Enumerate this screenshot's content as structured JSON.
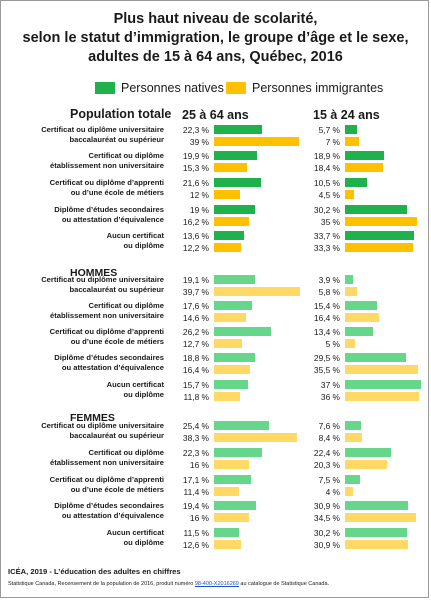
{
  "title_lines": [
    "Plus haut niveau de scolarité,",
    "selon le statut d’immigration, le groupe d’âge et le sexe,",
    "adultes de 15 à 64 ans, Québec, 2016"
  ],
  "colors": {
    "natives_dark": "#1fb14b",
    "immigrants_dark": "#ffc000",
    "natives_light": "#66d68a",
    "immigrants_light": "#ffd966"
  },
  "chart_data": {
    "type": "bar",
    "orientation": "horizontal",
    "title": "Plus haut niveau de scolarité, selon le statut d’immigration, le groupe d’âge et le sexe, adultes de 15 à 64 ans, Québec, 2016",
    "legend": [
      "Personnes natives",
      "Personnes immigrantes"
    ],
    "legend_position": "top",
    "columns": [
      "25 à 64 ans",
      "15 à 24 ans"
    ],
    "unit": "%",
    "grid": false,
    "sections": [
      {
        "name": "Population totale",
        "rows": [
          {
            "category": [
              "Certificat ou diplôme universitaire",
              "baccalauréat ou supérieur"
            ],
            "values": [
              {
                "natives": 22.3,
                "natives_label": "22,3 %",
                "immigrants": 39,
                "immigrants_label": "39 %"
              },
              {
                "natives": 5.7,
                "natives_label": "5,7 %",
                "immigrants": 7,
                "immigrants_label": "7 %"
              }
            ]
          },
          {
            "category": [
              "Certificat ou diplôme",
              "établissement non universitaire"
            ],
            "values": [
              {
                "natives": 19.9,
                "natives_label": "19,9 %",
                "immigrants": 15.3,
                "immigrants_label": "15,3 %"
              },
              {
                "natives": 18.9,
                "natives_label": "18,9 %",
                "immigrants": 18.4,
                "immigrants_label": "18,4 %"
              }
            ]
          },
          {
            "category": [
              "Certificat ou diplôme d’apprenti",
              "ou d’une école de métiers"
            ],
            "values": [
              {
                "natives": 21.6,
                "natives_label": "21,6 %",
                "immigrants": 12,
                "immigrants_label": "12 %"
              },
              {
                "natives": 10.5,
                "natives_label": "10,5 %",
                "immigrants": 4.5,
                "immigrants_label": "4,5 %"
              }
            ]
          },
          {
            "category": [
              "Diplôme d’études secondaires",
              "ou attestation d’équivalence"
            ],
            "values": [
              {
                "natives": 19,
                "natives_label": "19 %",
                "immigrants": 16.2,
                "immigrants_label": "16,2 %"
              },
              {
                "natives": 30.2,
                "natives_label": "30,2 %",
                "immigrants": 35,
                "immigrants_label": "35 %"
              }
            ]
          },
          {
            "category": [
              "Aucun certificat",
              "ou diplôme"
            ],
            "values": [
              {
                "natives": 13.6,
                "natives_label": "13,6 %",
                "immigrants": 12.2,
                "immigrants_label": "12,2 %"
              },
              {
                "natives": 33.7,
                "natives_label": "33,7 %",
                "immigrants": 33.3,
                "immigrants_label": "33,3 %"
              }
            ]
          }
        ]
      },
      {
        "name": "HOMMES",
        "rows": [
          {
            "category": [
              "Certificat ou diplôme universitaire",
              "baccalauréat ou supérieur"
            ],
            "values": [
              {
                "natives": 19.1,
                "natives_label": "19,1 %",
                "immigrants": 39.7,
                "immigrants_label": "39,7 %"
              },
              {
                "natives": 3.9,
                "natives_label": "3,9 %",
                "immigrants": 5.8,
                "immigrants_label": "5,8 %"
              }
            ]
          },
          {
            "category": [
              "Certificat ou diplôme",
              "établissement non universitaire"
            ],
            "values": [
              {
                "natives": 17.6,
                "natives_label": "17,6 %",
                "immigrants": 14.6,
                "immigrants_label": "14,6 %"
              },
              {
                "natives": 15.4,
                "natives_label": "15,4 %",
                "immigrants": 16.4,
                "immigrants_label": "16,4 %"
              }
            ]
          },
          {
            "category": [
              "Certificat ou diplôme d’apprenti",
              "ou d’une école de métiers"
            ],
            "values": [
              {
                "natives": 26.2,
                "natives_label": "26,2 %",
                "immigrants": 12.7,
                "immigrants_label": "12,7 %"
              },
              {
                "natives": 13.4,
                "natives_label": "13,4 %",
                "immigrants": 5,
                "immigrants_label": "5 %"
              }
            ]
          },
          {
            "category": [
              "Diplôme d’études secondaires",
              "ou attestation d’équivalence"
            ],
            "values": [
              {
                "natives": 18.8,
                "natives_label": "18,8 %",
                "immigrants": 16.4,
                "immigrants_label": "16,4 %"
              },
              {
                "natives": 29.5,
                "natives_label": "29,5 %",
                "immigrants": 35.5,
                "immigrants_label": "35,5 %"
              }
            ]
          },
          {
            "category": [
              "Aucun certificat",
              "ou diplôme"
            ],
            "values": [
              {
                "natives": 15.7,
                "natives_label": "15,7 %",
                "immigrants": 11.8,
                "immigrants_label": "11,8 %"
              },
              {
                "natives": 37,
                "natives_label": "37 %",
                "immigrants": 36,
                "immigrants_label": "36 %"
              }
            ]
          }
        ]
      },
      {
        "name": "FEMMES",
        "rows": [
          {
            "category": [
              "Certificat ou diplôme universitaire",
              "baccalauréat ou supérieur"
            ],
            "values": [
              {
                "natives": 25.4,
                "natives_label": "25,4 %",
                "immigrants": 38.3,
                "immigrants_label": "38,3 %"
              },
              {
                "natives": 7.6,
                "natives_label": "7,6 %",
                "immigrants": 8.4,
                "immigrants_label": "8,4 %"
              }
            ]
          },
          {
            "category": [
              "Certificat ou diplôme",
              "établissement non universitaire"
            ],
            "values": [
              {
                "natives": 22.3,
                "natives_label": "22,3 %",
                "immigrants": 16,
                "immigrants_label": "16 %"
              },
              {
                "natives": 22.4,
                "natives_label": "22,4 %",
                "immigrants": 20.3,
                "immigrants_label": "20,3 %"
              }
            ]
          },
          {
            "category": [
              "Certificat ou diplôme d’apprenti",
              "ou d’une école de métiers"
            ],
            "values": [
              {
                "natives": 17.1,
                "natives_label": "17,1 %",
                "immigrants": 11.4,
                "immigrants_label": "11,4 %"
              },
              {
                "natives": 7.5,
                "natives_label": "7,5 %",
                "immigrants": 4,
                "immigrants_label": "4 %"
              }
            ]
          },
          {
            "category": [
              "Diplôme d’études secondaires",
              "ou attestation d’équivalence"
            ],
            "values": [
              {
                "natives": 19.4,
                "natives_label": "19,4 %",
                "immigrants": 16,
                "immigrants_label": "16 %"
              },
              {
                "natives": 30.9,
                "natives_label": "30,9 %",
                "immigrants": 34.5,
                "immigrants_label": "34,5 %"
              }
            ]
          },
          {
            "category": [
              "Aucun certificat",
              "ou diplôme"
            ],
            "values": [
              {
                "natives": 11.5,
                "natives_label": "11,5 %",
                "immigrants": 12.6,
                "immigrants_label": "12,6 %"
              },
              {
                "natives": 30.2,
                "natives_label": "30,2 %",
                "immigrants": 30.9,
                "immigrants_label": "30,9 %"
              }
            ]
          }
        ]
      }
    ]
  },
  "footer": {
    "main": "ICÉA, 2019 - L’éducation des adultes en chiffres",
    "source_before": "Statistique Canada, Recensement de la population de 2016, produit numéro ",
    "source_link": "98-400-X2016269",
    "source_after": " au catalogue de Statistique Canada."
  }
}
